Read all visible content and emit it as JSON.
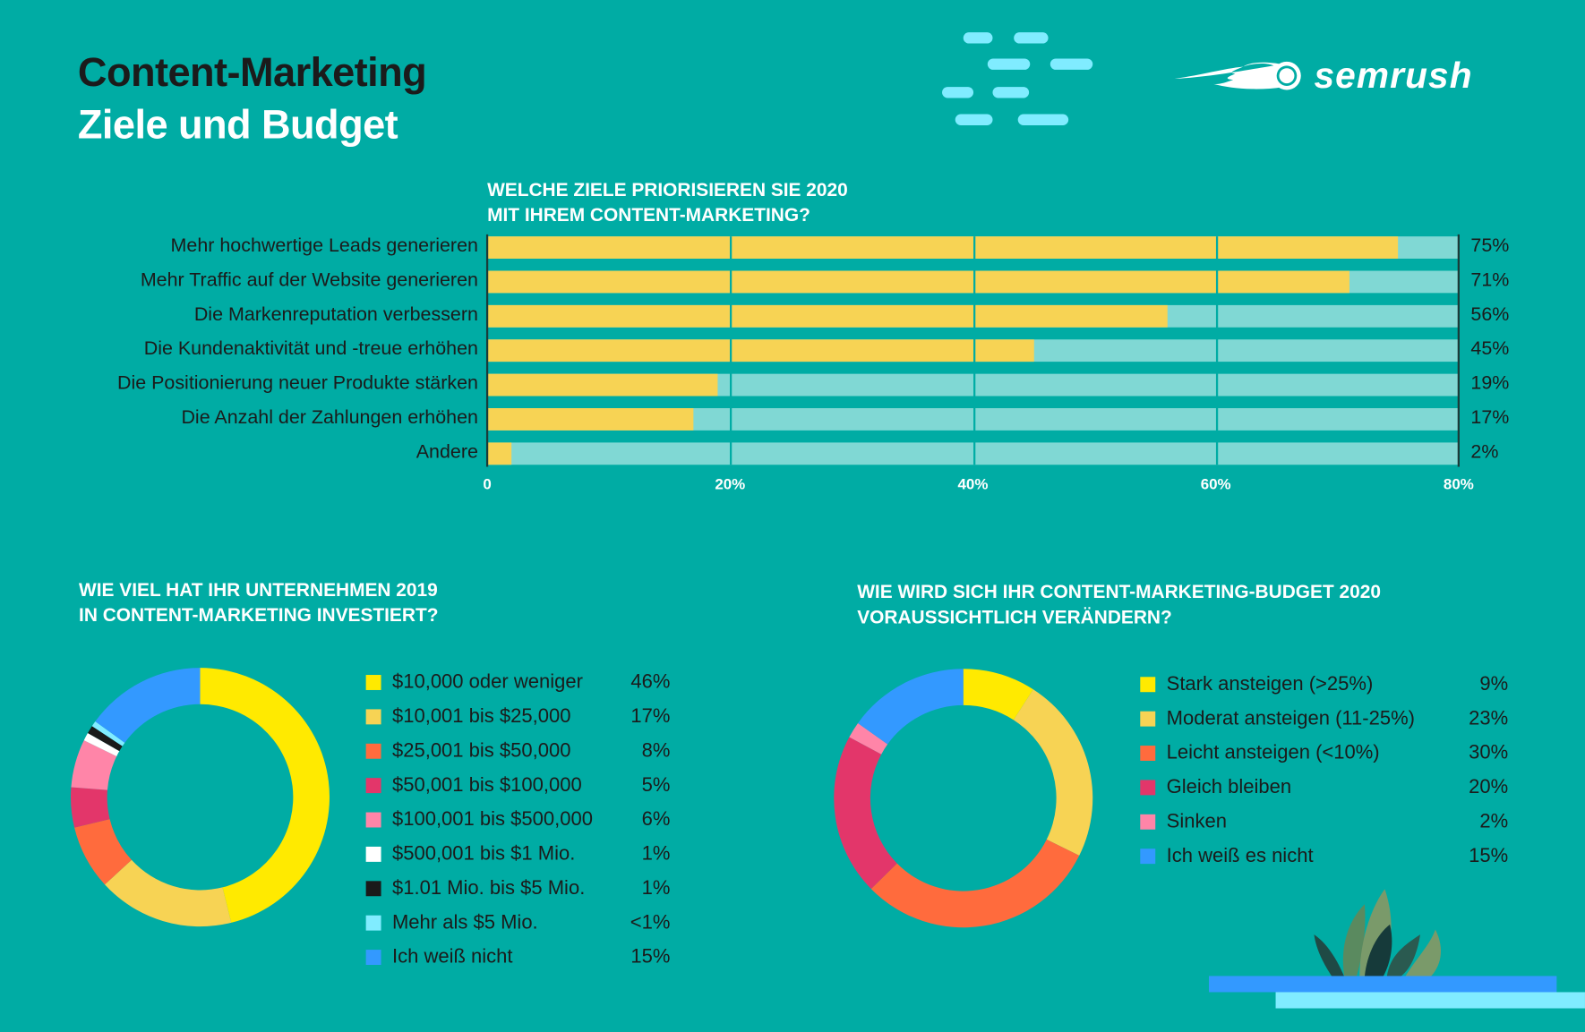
{
  "title": {
    "line1": "Content-Marketing",
    "line2": "Ziele und Budget"
  },
  "logo": {
    "text": "semrush",
    "icon": "semrush-comet-logo"
  },
  "colors": {
    "background": "#00aca4",
    "bar_fill": "#f7d354",
    "bar_track": "#80d8d4",
    "accent_light": "#80ecff",
    "accent_blue": "#3399ff"
  },
  "chart_data": [
    {
      "type": "bar",
      "orientation": "horizontal",
      "title_line1": "WELCHE ZIELE PRIORISIEREN SIE 2020",
      "title_line2": "MIT IHREM CONTENT-MARKETING?",
      "categories": [
        "Mehr hochwertige Leads generieren",
        "Mehr Traffic auf der Website generieren",
        "Die Markenreputation verbessern",
        "Die Kundenaktivität und -treue erhöhen",
        "Die Positionierung neuer Produkte stärken",
        "Die Anzahl der Zahlungen erhöhen",
        "Andere"
      ],
      "values": [
        75,
        71,
        56,
        45,
        19,
        17,
        2
      ],
      "value_labels": [
        "75%",
        "71%",
        "56%",
        "45%",
        "19%",
        "17%",
        "2%"
      ],
      "xlim": [
        0,
        80
      ],
      "xticks": [
        "0",
        "20%",
        "40%",
        "60%",
        "80%"
      ],
      "grid": true
    },
    {
      "type": "pie",
      "donut": true,
      "title_line1": "WIE VIEL HAT IHR UNTERNEHMEN 2019",
      "title_line2": "IN CONTENT-MARKETING INVESTIERT?",
      "categories": [
        "$10,000 oder weniger",
        "$10,001 bis $25,000",
        "$25,001 bis $50,000",
        "$50,001 bis $100,000",
        "$100,001 bis $500,000",
        "$500,001 bis $1 Mio.",
        "$1.01 Mio. bis $5 Mio.",
        "Mehr als $5 Mio.",
        "Ich weiß nicht"
      ],
      "values": [
        46,
        17,
        8,
        5,
        6,
        1,
        1,
        0.7,
        15
      ],
      "value_labels": [
        "46%",
        "17%",
        "8%",
        "5%",
        "6%",
        "1%",
        "1%",
        "<1%",
        "15%"
      ],
      "colors": [
        "#ffea00",
        "#f7d354",
        "#ff6b3d",
        "#e3366a",
        "#ff85a8",
        "#ffffff",
        "#1a1a1a",
        "#80ecff",
        "#3399ff"
      ],
      "legend": "right"
    },
    {
      "type": "pie",
      "donut": true,
      "title_line1": "WIE WIRD SICH IHR CONTENT-MARKETING-BUDGET 2020",
      "title_line2": "VORAUSSICHTLICH VERÄNDERN?",
      "categories": [
        "Stark ansteigen (>25%)",
        "Moderat ansteigen (11-25%)",
        "Leicht ansteigen (<10%)",
        "Gleich bleiben",
        "Sinken",
        "Ich weiß es nicht"
      ],
      "values": [
        9,
        23,
        30,
        20,
        2,
        15
      ],
      "value_labels": [
        "9%",
        "23%",
        "30%",
        "20%",
        "2%",
        "15%"
      ],
      "colors": [
        "#ffea00",
        "#f7d354",
        "#ff6b3d",
        "#e3366a",
        "#ff85a8",
        "#3399ff"
      ],
      "legend": "right"
    }
  ]
}
